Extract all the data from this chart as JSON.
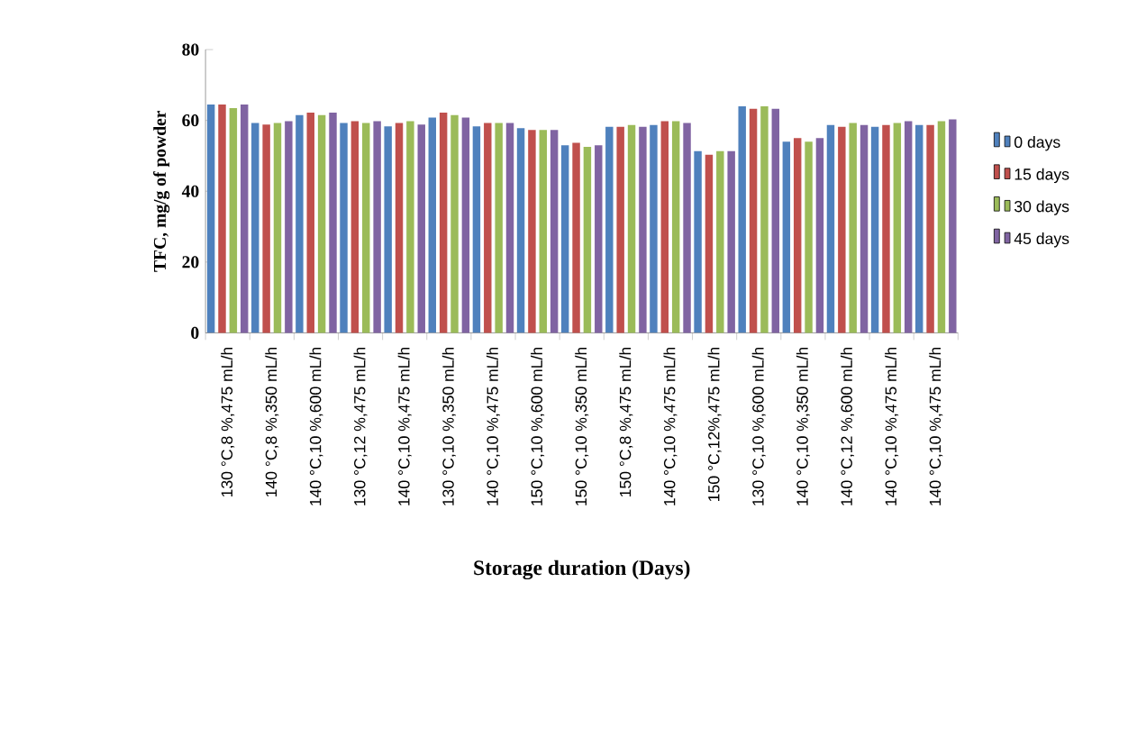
{
  "chart_data": {
    "type": "bar",
    "xlabel": "Storage duration (Days)",
    "ylabel": "TFC, mg/g of powder",
    "categories": [
      "130 °C,8 %,475 mL/h",
      "140 °C,8 %,350 mL/h",
      "140 °C,10 %,600 mL/h",
      "130 °C,12 %,475 mL/h",
      "140 °C,10 %,475 mL/h",
      "130 °C,10 %,350 mL/h",
      "140 °C,10 %,475 mL/h",
      "150 °C,10 %,600 mL/h",
      "150 °C,10 %,350 mL/h",
      "150 °C,8 %,475 mL/h",
      "140 °C,10 %,475 mL/h",
      "150 °C,12%,475 mL/h",
      "130 °C,10 %,600 mL/h",
      "140 °C,10 %,350 mL/h",
      "140 °C,12 %,600 mL/h",
      "140 °C,10 %,475 mL/h",
      "140 °C,10 %,475 mL/h"
    ],
    "series": [
      {
        "name": "0 days",
        "color": "#4f81bd",
        "values": [
          64.5,
          59.3,
          61.5,
          59.3,
          58.3,
          60.8,
          58.3,
          57.8,
          53,
          58.2,
          58.7,
          51.3,
          64,
          54,
          58.7,
          58.2,
          58.7
        ]
      },
      {
        "name": "15 days",
        "color": "#c0504d",
        "values": [
          64.5,
          58.8,
          62.2,
          59.8,
          59.3,
          62.2,
          59.3,
          57.3,
          53.7,
          58.2,
          59.8,
          50.3,
          63.3,
          55,
          58.2,
          58.7,
          58.7
        ]
      },
      {
        "name": "30 days",
        "color": "#9bbb59",
        "values": [
          63.5,
          59.3,
          61.5,
          59.3,
          59.8,
          61.5,
          59.3,
          57.3,
          52.5,
          58.7,
          59.8,
          51.3,
          64,
          54,
          59.3,
          59.3,
          59.8
        ]
      },
      {
        "name": "45 days",
        "color": "#8064a2",
        "values": [
          64.5,
          59.8,
          62.2,
          59.8,
          58.8,
          60.8,
          59.3,
          57.3,
          53,
          58.2,
          59.3,
          51.3,
          63.3,
          55,
          58.7,
          59.8,
          60.3
        ]
      }
    ],
    "ylim": [
      0,
      80
    ],
    "yticks": [
      0,
      20,
      40,
      60,
      80
    ],
    "legend": "right",
    "grid": false
  }
}
